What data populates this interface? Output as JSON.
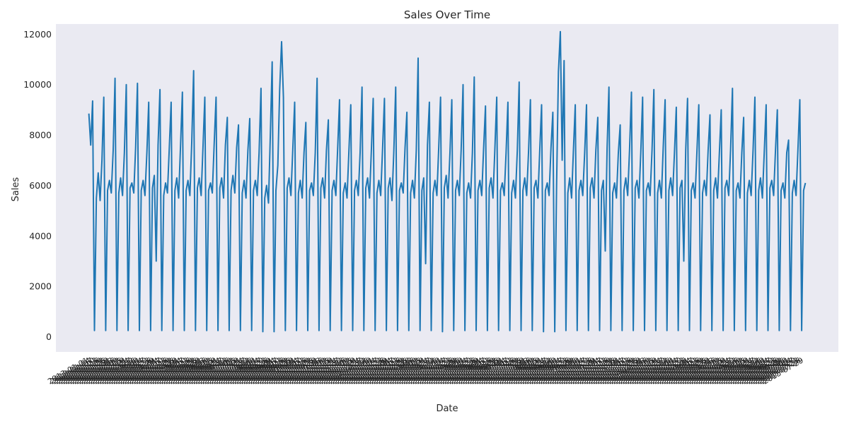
{
  "chart_data": {
    "type": "line",
    "title": "Sales Over Time",
    "xlabel": "Date",
    "ylabel": "Sales",
    "ylim": [
      -600,
      12400
    ],
    "yticks": [
      0,
      2000,
      4000,
      6000,
      8000,
      10000,
      12000
    ],
    "grid": false,
    "legend": "none",
    "style": {
      "background": "#eaeaf2",
      "line_color": "#1f77b4",
      "text_color": "#262626"
    },
    "series": [
      {
        "x_start": "2013-01-01",
        "x_end": "2015-07-31",
        "values": [
          8850,
          7600,
          9350,
          250,
          5500,
          6500,
          5400,
          7000,
          9500,
          250,
          5800,
          6200,
          5700,
          7400,
          10250,
          250,
          5700,
          6300,
          5600,
          7300,
          10000,
          250,
          5900,
          6100,
          5700,
          7500,
          10050,
          250,
          5800,
          6200,
          5600,
          7300,
          9300,
          250,
          5900,
          6400,
          3000,
          7600,
          9800,
          250,
          5600,
          6100,
          5700,
          7500,
          9300,
          250,
          5800,
          6300,
          5500,
          7600,
          9700,
          250,
          5800,
          6200,
          5600,
          7700,
          10550,
          250,
          5900,
          6300,
          5600,
          7500,
          9500,
          250,
          5800,
          6100,
          5700,
          7700,
          9500,
          250,
          5900,
          6300,
          5500,
          7600,
          8700,
          250,
          5800,
          6400,
          5700,
          7500,
          8400,
          250,
          5700,
          6200,
          5500,
          7400,
          8650,
          250,
          5800,
          6200,
          5600,
          7300,
          9850,
          200,
          5500,
          6000,
          5300,
          8000,
          10900,
          200,
          5800,
          6800,
          9800,
          11700,
          9500,
          250,
          5900,
          6300,
          5600,
          7400,
          9300,
          250,
          5700,
          6200,
          5500,
          7300,
          8500,
          250,
          5800,
          6100,
          5600,
          7300,
          10250,
          250,
          5900,
          6300,
          5500,
          7400,
          8600,
          250,
          5800,
          6200,
          5600,
          7500,
          9400,
          250,
          5700,
          6100,
          5500,
          7400,
          9200,
          250,
          5800,
          6200,
          5600,
          7300,
          9900,
          250,
          5900,
          6300,
          5500,
          7400,
          9450,
          250,
          5700,
          6200,
          5600,
          7500,
          9450,
          250,
          5900,
          6300,
          5400,
          7300,
          9900,
          250,
          5800,
          6100,
          5700,
          7500,
          8900,
          250,
          5700,
          6200,
          5500,
          7400,
          11050,
          250,
          5800,
          6300,
          2900,
          7600,
          9300,
          250,
          5700,
          6200,
          5600,
          7500,
          9500,
          200,
          5900,
          6400,
          5500,
          7300,
          9400,
          250,
          5800,
          6200,
          5600,
          7400,
          10000,
          250,
          5700,
          6100,
          5500,
          7300,
          10300,
          250,
          5800,
          6200,
          5600,
          7500,
          9150,
          250,
          5900,
          6300,
          5500,
          7400,
          9500,
          250,
          5800,
          6100,
          5600,
          7300,
          9300,
          250,
          5700,
          6200,
          5500,
          7400,
          10100,
          250,
          5800,
          6300,
          5600,
          7300,
          9400,
          250,
          5900,
          6200,
          5500,
          7400,
          9200,
          200,
          5800,
          6100,
          5600,
          7500,
          8900,
          200,
          6000,
          10500,
          12100,
          7000,
          10950,
          250,
          5700,
          6300,
          5500,
          7400,
          9200,
          250,
          5800,
          6200,
          5600,
          7300,
          9200,
          250,
          5900,
          6300,
          5500,
          7400,
          8700,
          250,
          5800,
          6200,
          3400,
          7500,
          9900,
          250,
          5700,
          6100,
          5500,
          7300,
          8400,
          250,
          5800,
          6300,
          5600,
          7400,
          9700,
          250,
          5900,
          6200,
          5500,
          7300,
          9500,
          250,
          5800,
          6100,
          5600,
          7400,
          9800,
          250,
          5700,
          6200,
          5500,
          7500,
          9400,
          250,
          5800,
          6300,
          5600,
          7300,
          9100,
          250,
          5900,
          6200,
          3000,
          7400,
          9450,
          250,
          5800,
          6100,
          5500,
          7300,
          9200,
          250,
          5700,
          6200,
          5600,
          7400,
          8800,
          250,
          5800,
          6300,
          5500,
          7300,
          9000,
          250,
          5900,
          6200,
          5600,
          7400,
          9850,
          250,
          5800,
          6100,
          5500,
          7300,
          8700,
          250,
          5700,
          6200,
          5600,
          7400,
          9500,
          250,
          5800,
          6300,
          5500,
          7300,
          9200,
          250,
          5900,
          6200,
          5600,
          7400,
          9000,
          250,
          5800,
          6100,
          5500,
          7300,
          7800,
          250,
          5700,
          6200,
          5600,
          7400,
          9400,
          250,
          5800,
          6100
        ]
      }
    ]
  }
}
